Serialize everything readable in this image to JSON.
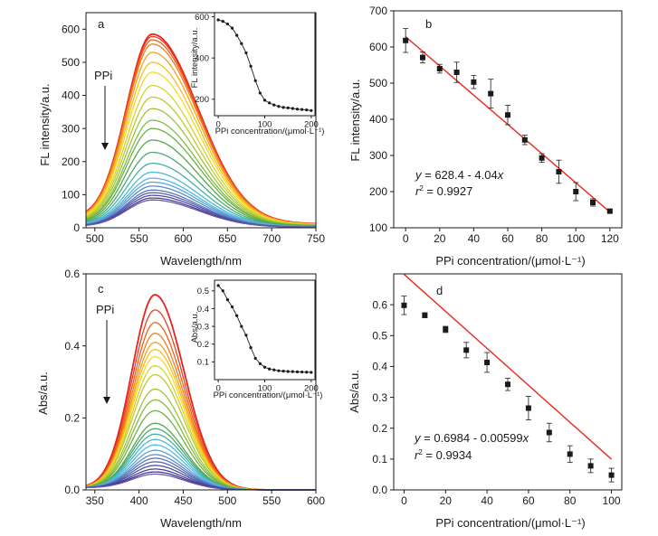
{
  "chart_data": [
    {
      "panel": "a",
      "type": "line",
      "xlabel": "Wavelength/nm",
      "ylabel": "FL intensity/a.u.",
      "xlim": [
        490,
        750
      ],
      "ylim": [
        0,
        650
      ],
      "xticks": [
        500,
        550,
        600,
        650,
        700,
        750
      ],
      "yticks": [
        0,
        100,
        200,
        300,
        400,
        500,
        600
      ],
      "annotation": "PPi",
      "spectrum_shape": {
        "peak_x": 565,
        "sigma_left": 29,
        "sigma_right": 52,
        "baseline_start": 30,
        "baseline_end": 12
      },
      "series_peaks": [
        585,
        578,
        568,
        555,
        530,
        500,
        470,
        430,
        395,
        360,
        325,
        300,
        265,
        228,
        195,
        168,
        150,
        138,
        126,
        114,
        106,
        98,
        90,
        84
      ],
      "series_colors": [
        "#e52420",
        "#e8421e",
        "#ec5f1c",
        "#f07e1c",
        "#f4a11c",
        "#f6c11e",
        "#f3d92a",
        "#d6d32d",
        "#b9cc35",
        "#9fc43b",
        "#84bc40",
        "#6bb244",
        "#54a84a",
        "#4aaa74",
        "#46b2a4",
        "#4bbad0",
        "#55b8e2",
        "#5aa3d9",
        "#5a8ccb",
        "#5876bc",
        "#5563ae",
        "#514ea0",
        "#4d3f95",
        "#6a5aa8"
      ],
      "inset": {
        "xlabel": "PPi concentration/(μmol·L⁻¹)",
        "ylabel": "FL intensity/a.u.",
        "xlim": [
          -8,
          208
        ],
        "ylim": [
          120,
          620
        ],
        "xticks": [
          0,
          100,
          200
        ],
        "yticks": [
          200,
          400,
          600
        ],
        "x": [
          0,
          10,
          20,
          30,
          40,
          50,
          60,
          70,
          80,
          90,
          100,
          110,
          120,
          130,
          140,
          150,
          160,
          170,
          180,
          190,
          200
        ],
        "y": [
          585,
          578,
          565,
          545,
          510,
          470,
          425,
          360,
          290,
          230,
          195,
          182,
          172,
          165,
          160,
          158,
          155,
          152,
          150,
          148,
          145
        ]
      }
    },
    {
      "panel": "b",
      "type": "scatter",
      "xlabel": "PPi concentration/(μmol·L⁻¹)",
      "ylabel": "FL intensity/a.u.",
      "xlim": [
        -7,
        127
      ],
      "ylim": [
        100,
        700
      ],
      "xticks": [
        0,
        20,
        40,
        60,
        80,
        100,
        120
      ],
      "yticks": [
        100,
        200,
        300,
        400,
        500,
        600,
        700
      ],
      "x": [
        0,
        10,
        20,
        30,
        40,
        50,
        60,
        70,
        80,
        90,
        100,
        110,
        120
      ],
      "y": [
        618,
        571,
        540,
        530,
        503,
        471,
        412,
        343,
        293,
        255,
        200,
        170,
        146
      ],
      "yerr": [
        33,
        15,
        12,
        28,
        18,
        40,
        27,
        13,
        12,
        32,
        25,
        10,
        5
      ],
      "fit": {
        "intercept": 628.4,
        "slope": -4.04,
        "x_range": [
          0,
          120
        ]
      },
      "equation_text": {
        "prefix": "y",
        "body": " = 628.4 - 4.04",
        "var": "x"
      },
      "r2_text": {
        "prefix": "r",
        "sup": "2",
        "body": " = 0.9927"
      }
    },
    {
      "panel": "c",
      "type": "line",
      "xlabel": "Wavelength/nm",
      "ylabel": "Abs/a.u.",
      "xlim": [
        340,
        600
      ],
      "ylim": [
        0,
        0.6
      ],
      "xticks": [
        350,
        400,
        450,
        500,
        550,
        600
      ],
      "yticks": [
        0.0,
        0.2,
        0.4,
        0.6
      ],
      "annotation": "PPi",
      "spectrum_shape": {
        "peak_x": 418,
        "sigma_left": 26,
        "sigma_right": 33,
        "baseline_start": 0.04,
        "baseline_end": 0.0
      },
      "series_peaks": [
        0.542,
        0.5,
        0.465,
        0.435,
        0.41,
        0.39,
        0.37,
        0.345,
        0.32,
        0.28,
        0.25,
        0.22,
        0.185,
        0.17,
        0.155,
        0.14,
        0.125,
        0.11,
        0.098,
        0.088,
        0.078,
        0.068,
        0.058,
        0.05,
        0.044
      ],
      "series_colors": [
        "#e52420",
        "#e8421e",
        "#ec5f1c",
        "#f07e1c",
        "#f4a11c",
        "#f6c11e",
        "#f3d92a",
        "#d6d32d",
        "#b9cc35",
        "#9fc43b",
        "#84bc40",
        "#6bb244",
        "#54a84a",
        "#4aaa74",
        "#46b2a4",
        "#4bbad0",
        "#55b8e2",
        "#5aa3d9",
        "#5a8ccb",
        "#5876bc",
        "#5563ae",
        "#514ea0",
        "#4d3f95",
        "#3f3690",
        "#6a5aa8"
      ],
      "inset": {
        "xlabel": "PPi concentration/(μmol·L⁻¹)",
        "ylabel": "Abs/a.u.",
        "xlim": [
          -8,
          208
        ],
        "ylim": [
          0,
          0.56
        ],
        "xticks": [
          0,
          100,
          200
        ],
        "yticks": [
          0.1,
          0.2,
          0.3,
          0.4,
          0.5
        ],
        "x": [
          0,
          10,
          20,
          30,
          40,
          50,
          60,
          70,
          80,
          90,
          100,
          110,
          120,
          130,
          140,
          150,
          160,
          170,
          180,
          190,
          200
        ],
        "y": [
          0.53,
          0.5,
          0.45,
          0.41,
          0.36,
          0.3,
          0.25,
          0.18,
          0.12,
          0.09,
          0.07,
          0.06,
          0.055,
          0.05,
          0.048,
          0.046,
          0.045,
          0.044,
          0.043,
          0.042,
          0.041
        ]
      }
    },
    {
      "panel": "d",
      "type": "scatter",
      "xlabel": "PPi concentration/(μmol·L⁻¹)",
      "ylabel": "Abs/a.u.",
      "xlim": [
        -5,
        105
      ],
      "ylim": [
        0,
        0.7
      ],
      "xticks": [
        0,
        20,
        40,
        60,
        80,
        100
      ],
      "yticks": [
        0.0,
        0.1,
        0.2,
        0.3,
        0.4,
        0.5,
        0.6
      ],
      "x": [
        0,
        10,
        20,
        30,
        40,
        50,
        60,
        70,
        80,
        90,
        100
      ],
      "y": [
        0.598,
        0.566,
        0.52,
        0.453,
        0.413,
        0.342,
        0.265,
        0.186,
        0.116,
        0.078,
        0.048
      ],
      "yerr": [
        0.03,
        0.008,
        0.01,
        0.025,
        0.032,
        0.02,
        0.038,
        0.03,
        0.027,
        0.022,
        0.022
      ],
      "fit": {
        "intercept": 0.6984,
        "slope": -0.00599,
        "x_range": [
          0,
          100
        ]
      },
      "equation_text": {
        "prefix": "y",
        "body": " = 0.6984 - 0.00599",
        "var": "x"
      },
      "r2_text": {
        "prefix": "r",
        "sup": "2",
        "body": " = 0.9934"
      }
    }
  ],
  "style": {
    "axis_color": "#1a1a1a",
    "fit_color": "#e8281e",
    "marker_color": "#1a1a1a"
  }
}
